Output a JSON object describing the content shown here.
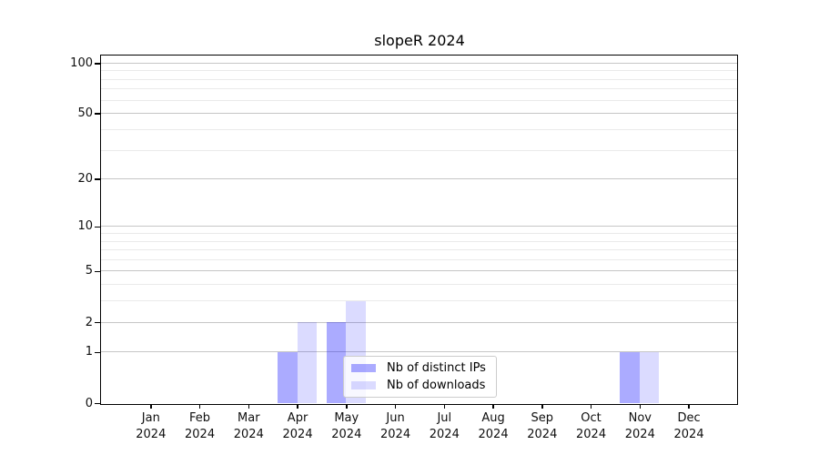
{
  "chart_data": {
    "type": "bar",
    "title": "slopeR 2024",
    "categories": [
      "Jan 2024",
      "Feb 2024",
      "Mar 2024",
      "Apr 2024",
      "May 2024",
      "Jun 2024",
      "Jul 2024",
      "Aug 2024",
      "Sep 2024",
      "Oct 2024",
      "Nov 2024",
      "Dec 2024"
    ],
    "series": [
      {
        "name": "Nb of distinct IPs",
        "color": "rgba(0,0,255,0.33)",
        "values": [
          0,
          0,
          0,
          1,
          2,
          0,
          0,
          0,
          0,
          0,
          1,
          0
        ]
      },
      {
        "name": "Nb of downloads",
        "color": "rgba(0,0,255,0.14)",
        "values": [
          0,
          0,
          0,
          2,
          3,
          0,
          0,
          0,
          0,
          0,
          1,
          0
        ]
      }
    ],
    "xlabel": "",
    "ylabel": "",
    "yscale": "log1p",
    "ylim": [
      0,
      112
    ],
    "y_major_ticks": [
      0,
      1,
      2,
      5,
      10,
      20,
      50,
      100
    ],
    "y_minor_ticks": [
      3,
      4,
      6,
      7,
      8,
      9,
      30,
      40,
      60,
      70,
      80,
      90
    ],
    "grid": true,
    "legend_position": "lower center-left inside plot"
  },
  "colors": {
    "major_grid": "#c6c6c6",
    "minor_grid": "#eaeaea",
    "spine": "#000000",
    "tick_text": "#0f0f0f",
    "legend_border": "#cccccc",
    "legend_bg": "rgba(255,255,255,0.8)"
  }
}
